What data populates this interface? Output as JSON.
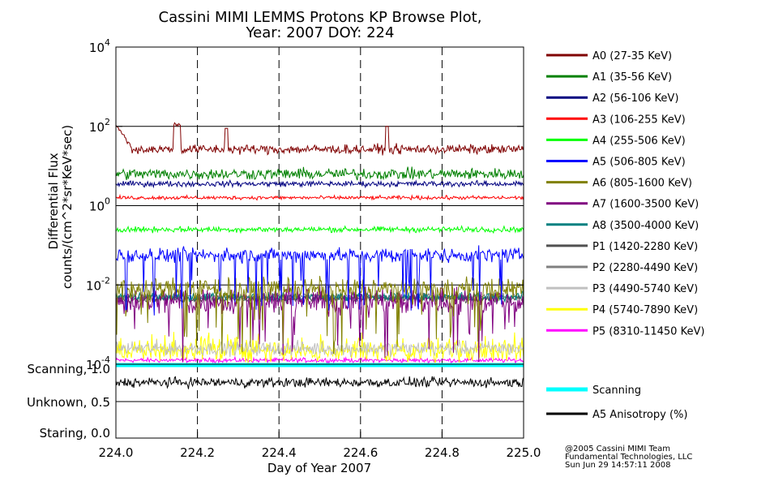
{
  "chart_data": {
    "type": "line",
    "title": "Cassini MIMI LEMMS Protons KP Browse Plot,",
    "subtitle": "Year: 2007 DOY: 224",
    "xlabel": "Day of Year 2007",
    "ylabel_line1": "Differential Flux",
    "ylabel_line2": "counts/(cm^2*sr*KeV*sec)",
    "xlim": [
      224.0,
      225.0
    ],
    "x_ticks": [
      "224.0",
      "224.2",
      "224.4",
      "224.6",
      "224.8",
      "225.0"
    ],
    "x_tick_values": [
      224.0,
      224.2,
      224.4,
      224.6,
      224.8,
      225.0
    ],
    "ylim_log10": [
      -4,
      4
    ],
    "y_ticks": [
      {
        "base": "10",
        "exp": "4",
        "log": 4
      },
      {
        "base": "10",
        "exp": "2",
        "log": 2
      },
      {
        "base": "10",
        "exp": "0",
        "log": 0
      },
      {
        "base": "10",
        "exp": "-2",
        "log": -2
      },
      {
        "base": "10",
        "exp": "-4",
        "log": -4
      }
    ],
    "mode_panel": {
      "labels": [
        "Scanning, 1.0",
        "Unknown, 0.5",
        "Staring, 0.0"
      ],
      "values": [
        1.0,
        0.5,
        0.0
      ]
    },
    "series": [
      {
        "name": "A0 (27-35 KeV)",
        "color": "#800000",
        "log_level": 1.42,
        "noise": 0.1
      },
      {
        "name": "A1 (35-56 KeV)",
        "color": "#008000",
        "log_level": 0.8,
        "noise": 0.12
      },
      {
        "name": "A2 (56-106 KeV)",
        "color": "#000080",
        "log_level": 0.55,
        "noise": 0.06
      },
      {
        "name": "A3 (106-255 KeV)",
        "color": "#ff0000",
        "log_level": 0.2,
        "noise": 0.04
      },
      {
        "name": "A4 (255-506 KeV)",
        "color": "#00ff00",
        "log_level": -0.6,
        "noise": 0.06
      },
      {
        "name": "A5 (506-805 KeV)",
        "color": "#0000ff",
        "log_level": -1.25,
        "noise": 0.15
      },
      {
        "name": "A6 (805-1600 KeV)",
        "color": "#808000",
        "log_level": -2.1,
        "noise": 0.25
      },
      {
        "name": "A7 (1600-3500 KeV)",
        "color": "#800080",
        "log_level": -2.4,
        "noise": 0.3
      },
      {
        "name": "A8 (3500-4000 KeV)",
        "color": "#008080",
        "log_level": -2.3,
        "noise": 0.1
      },
      {
        "name": "P1 (1420-2280 KeV)",
        "color": "#505050",
        "log_level": -2.35,
        "noise": 0.08
      },
      {
        "name": "P2 (2280-4490 KeV)",
        "color": "#808080",
        "log_level": -2.3,
        "noise": 0.08
      },
      {
        "name": "P3 (4490-5740 KeV)",
        "color": "#c0c0c0",
        "log_level": -3.6,
        "noise": 0.15
      },
      {
        "name": "P4 (5740-7890 KeV)",
        "color": "#ffff00",
        "log_level": -3.7,
        "noise": 0.2
      },
      {
        "name": "P5 (8310-11450 KeV)",
        "color": "#ff00ff",
        "log_level": -3.9,
        "noise": 0.05
      }
    ],
    "extra_legend": [
      {
        "name": "Scanning",
        "color": "#00ffff"
      },
      {
        "name": "A5 Anisotropy (%)",
        "color": "#000000"
      }
    ],
    "scanning_value": 1.0,
    "anisotropy_level": 0.78
  },
  "credits": {
    "line1": "@2005 Cassini MIMI Team",
    "line2": "Fundamental Technologies, LLC",
    "line3": "Sun Jun 29 14:57:11 2008"
  }
}
